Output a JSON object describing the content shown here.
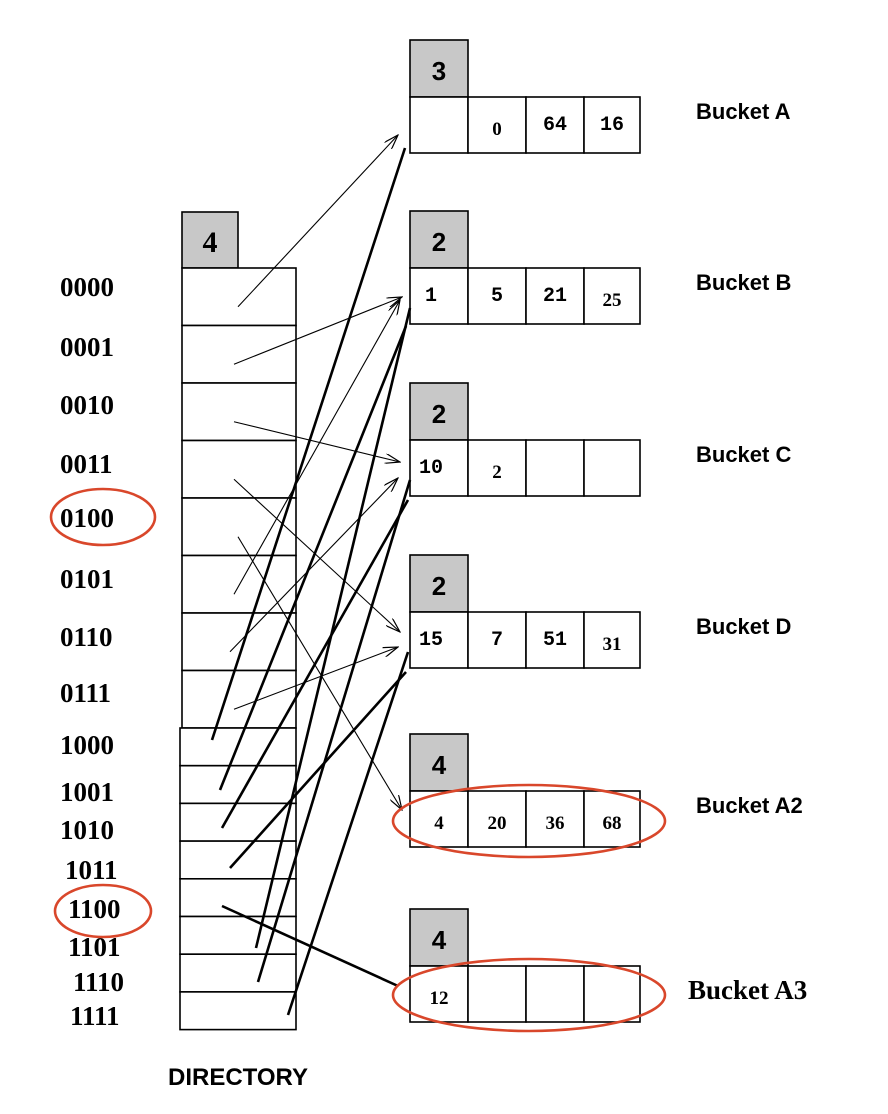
{
  "directory": {
    "global_depth": "4",
    "label": "DIRECTORY",
    "entries": [
      "0000",
      "0001",
      "0010",
      "0011",
      "0100",
      "0101",
      "0110",
      "0111",
      "1000",
      "1001",
      "1010",
      "1011",
      "1100",
      "1101",
      "1110",
      "1111"
    ],
    "highlighted": [
      "0100",
      "1100"
    ]
  },
  "buckets": [
    {
      "name": "Bucket A",
      "local_depth": "3",
      "cells": [
        "",
        "0",
        "64",
        "16"
      ]
    },
    {
      "name": "Bucket B",
      "local_depth": "2",
      "cells": [
        "1",
        "5",
        "21",
        "25"
      ]
    },
    {
      "name": "Bucket C",
      "local_depth": "2",
      "cells": [
        "10",
        "2",
        "",
        ""
      ]
    },
    {
      "name": "Bucket D",
      "local_depth": "2",
      "cells": [
        "15",
        "7",
        "51",
        "31"
      ]
    },
    {
      "name": "Bucket A2",
      "local_depth": "4",
      "cells": [
        "4",
        "20",
        "36",
        "68"
      ],
      "highlighted": true
    },
    {
      "name": "Bucket A3",
      "local_depth": "4",
      "cells": [
        "12",
        "",
        "",
        ""
      ],
      "highlighted": true
    }
  ],
  "pointers": [
    {
      "from": "0000",
      "to": "Bucket A"
    },
    {
      "from": "0001",
      "to": "Bucket B"
    },
    {
      "from": "0010",
      "to": "Bucket C"
    },
    {
      "from": "0011",
      "to": "Bucket D"
    },
    {
      "from": "0100",
      "to": "Bucket A2"
    },
    {
      "from": "0101",
      "to": "Bucket B"
    },
    {
      "from": "0110",
      "to": "Bucket C"
    },
    {
      "from": "0111",
      "to": "Bucket D"
    },
    {
      "from": "1000",
      "to": "Bucket A"
    },
    {
      "from": "1001",
      "to": "Bucket B"
    },
    {
      "from": "1010",
      "to": "Bucket C"
    },
    {
      "from": "1011",
      "to": "Bucket D"
    },
    {
      "from": "1100",
      "to": "Bucket A3"
    },
    {
      "from": "1101",
      "to": "Bucket B"
    },
    {
      "from": "1110",
      "to": "Bucket C"
    },
    {
      "from": "1111",
      "to": "Bucket D"
    }
  ]
}
